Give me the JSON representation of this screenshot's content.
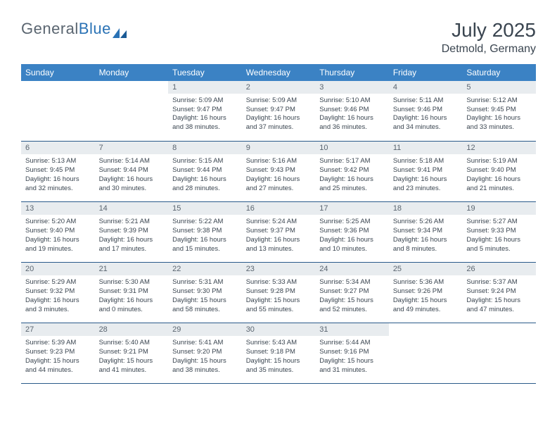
{
  "brand": {
    "part1": "General",
    "part2": "Blue"
  },
  "title": "July 2025",
  "location": "Detmold, Germany",
  "dayHeaders": [
    "Sunday",
    "Monday",
    "Tuesday",
    "Wednesday",
    "Thursday",
    "Friday",
    "Saturday"
  ],
  "colors": {
    "headerBg": "#3b82c4",
    "headerText": "#ffffff",
    "dayNumBg": "#e8ecef",
    "dayNumText": "#5a6570",
    "borderColor": "#2a5a8a",
    "bodyText": "#3a4550",
    "logoGray": "#5a6570",
    "logoBlue": "#2a72b5"
  },
  "weeks": [
    [
      null,
      null,
      {
        "n": "1",
        "sr": "5:09 AM",
        "ss": "9:47 PM",
        "dl": "16 hours and 38 minutes."
      },
      {
        "n": "2",
        "sr": "5:09 AM",
        "ss": "9:47 PM",
        "dl": "16 hours and 37 minutes."
      },
      {
        "n": "3",
        "sr": "5:10 AM",
        "ss": "9:46 PM",
        "dl": "16 hours and 36 minutes."
      },
      {
        "n": "4",
        "sr": "5:11 AM",
        "ss": "9:46 PM",
        "dl": "16 hours and 34 minutes."
      },
      {
        "n": "5",
        "sr": "5:12 AM",
        "ss": "9:45 PM",
        "dl": "16 hours and 33 minutes."
      }
    ],
    [
      {
        "n": "6",
        "sr": "5:13 AM",
        "ss": "9:45 PM",
        "dl": "16 hours and 32 minutes."
      },
      {
        "n": "7",
        "sr": "5:14 AM",
        "ss": "9:44 PM",
        "dl": "16 hours and 30 minutes."
      },
      {
        "n": "8",
        "sr": "5:15 AM",
        "ss": "9:44 PM",
        "dl": "16 hours and 28 minutes."
      },
      {
        "n": "9",
        "sr": "5:16 AM",
        "ss": "9:43 PM",
        "dl": "16 hours and 27 minutes."
      },
      {
        "n": "10",
        "sr": "5:17 AM",
        "ss": "9:42 PM",
        "dl": "16 hours and 25 minutes."
      },
      {
        "n": "11",
        "sr": "5:18 AM",
        "ss": "9:41 PM",
        "dl": "16 hours and 23 minutes."
      },
      {
        "n": "12",
        "sr": "5:19 AM",
        "ss": "9:40 PM",
        "dl": "16 hours and 21 minutes."
      }
    ],
    [
      {
        "n": "13",
        "sr": "5:20 AM",
        "ss": "9:40 PM",
        "dl": "16 hours and 19 minutes."
      },
      {
        "n": "14",
        "sr": "5:21 AM",
        "ss": "9:39 PM",
        "dl": "16 hours and 17 minutes."
      },
      {
        "n": "15",
        "sr": "5:22 AM",
        "ss": "9:38 PM",
        "dl": "16 hours and 15 minutes."
      },
      {
        "n": "16",
        "sr": "5:24 AM",
        "ss": "9:37 PM",
        "dl": "16 hours and 13 minutes."
      },
      {
        "n": "17",
        "sr": "5:25 AM",
        "ss": "9:36 PM",
        "dl": "16 hours and 10 minutes."
      },
      {
        "n": "18",
        "sr": "5:26 AM",
        "ss": "9:34 PM",
        "dl": "16 hours and 8 minutes."
      },
      {
        "n": "19",
        "sr": "5:27 AM",
        "ss": "9:33 PM",
        "dl": "16 hours and 5 minutes."
      }
    ],
    [
      {
        "n": "20",
        "sr": "5:29 AM",
        "ss": "9:32 PM",
        "dl": "16 hours and 3 minutes."
      },
      {
        "n": "21",
        "sr": "5:30 AM",
        "ss": "9:31 PM",
        "dl": "16 hours and 0 minutes."
      },
      {
        "n": "22",
        "sr": "5:31 AM",
        "ss": "9:30 PM",
        "dl": "15 hours and 58 minutes."
      },
      {
        "n": "23",
        "sr": "5:33 AM",
        "ss": "9:28 PM",
        "dl": "15 hours and 55 minutes."
      },
      {
        "n": "24",
        "sr": "5:34 AM",
        "ss": "9:27 PM",
        "dl": "15 hours and 52 minutes."
      },
      {
        "n": "25",
        "sr": "5:36 AM",
        "ss": "9:26 PM",
        "dl": "15 hours and 49 minutes."
      },
      {
        "n": "26",
        "sr": "5:37 AM",
        "ss": "9:24 PM",
        "dl": "15 hours and 47 minutes."
      }
    ],
    [
      {
        "n": "27",
        "sr": "5:39 AM",
        "ss": "9:23 PM",
        "dl": "15 hours and 44 minutes."
      },
      {
        "n": "28",
        "sr": "5:40 AM",
        "ss": "9:21 PM",
        "dl": "15 hours and 41 minutes."
      },
      {
        "n": "29",
        "sr": "5:41 AM",
        "ss": "9:20 PM",
        "dl": "15 hours and 38 minutes."
      },
      {
        "n": "30",
        "sr": "5:43 AM",
        "ss": "9:18 PM",
        "dl": "15 hours and 35 minutes."
      },
      {
        "n": "31",
        "sr": "5:44 AM",
        "ss": "9:16 PM",
        "dl": "15 hours and 31 minutes."
      },
      null,
      null
    ]
  ],
  "labels": {
    "sunrise": "Sunrise:",
    "sunset": "Sunset:",
    "daylight": "Daylight:"
  }
}
